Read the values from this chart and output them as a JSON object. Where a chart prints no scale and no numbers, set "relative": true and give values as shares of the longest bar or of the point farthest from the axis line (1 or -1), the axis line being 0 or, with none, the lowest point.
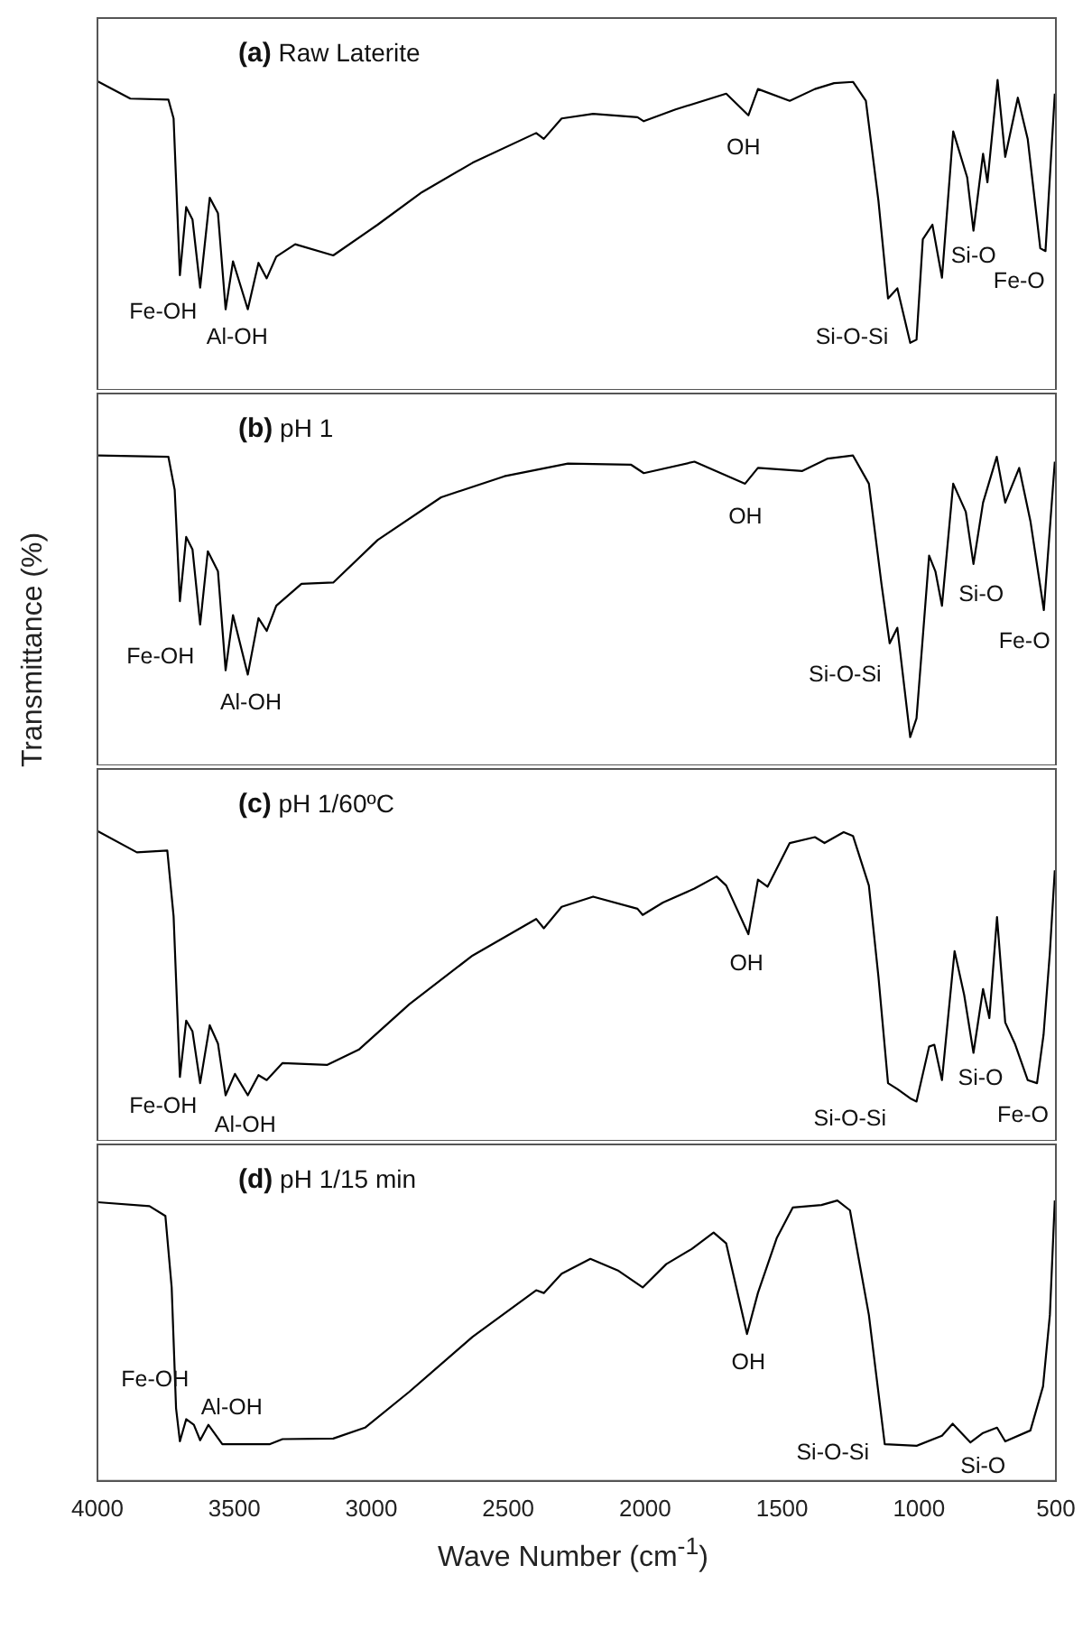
{
  "chart_data": [
    {
      "type": "line",
      "title": "(a) Raw Laterite",
      "relative": true,
      "xlim": [
        4000,
        500
      ],
      "tick_labels": false,
      "grid": false,
      "legend": false,
      "x": [
        4000,
        3880,
        3741,
        3722,
        3699,
        3676,
        3653,
        3625,
        3590,
        3560,
        3532,
        3505,
        3451,
        3412,
        3382,
        3347,
        3278,
        3139,
        2977,
        2815,
        2630,
        2398,
        2370,
        2305,
        2190,
        2028,
        2005,
        1889,
        1704,
        1623,
        1588,
        1472,
        1380,
        1310,
        1241,
        1194,
        1148,
        1113,
        1079,
        1032,
        1009,
        986,
        951,
        916,
        875,
        824,
        801,
        766,
        750,
        713,
        685,
        639,
        603,
        557,
        538,
        504
      ],
      "series": [
        {
          "color": "#000000",
          "values": [
            0.996,
            0.94,
            0.937,
            0.876,
            0.37,
            0.59,
            0.55,
            0.33,
            0.62,
            0.57,
            0.26,
            0.415,
            0.26,
            0.41,
            0.36,
            0.43,
            0.47,
            0.434,
            0.533,
            0.638,
            0.733,
            0.829,
            0.81,
            0.876,
            0.891,
            0.88,
            0.867,
            0.905,
            0.956,
            0.886,
            0.971,
            0.933,
            0.971,
            0.99,
            0.994,
            0.933,
            0.61,
            0.295,
            0.328,
            0.152,
            0.162,
            0.486,
            0.533,
            0.362,
            0.834,
            0.686,
            0.514,
            0.762,
            0.67,
            1,
            0.752,
            0.943,
            0.81,
            0.457,
            0.448,
            0.956
          ]
        }
      ],
      "annotations": [
        "Fe-OH",
        "Al-OH",
        "OH",
        "Si-O-Si",
        "Si-O",
        "Fe-O"
      ]
    },
    {
      "type": "line",
      "title": "(b) pH 1",
      "ylabel": "Transmittance (%)",
      "relative": true,
      "xlim": [
        4000,
        500
      ],
      "tick_labels": false,
      "grid": false,
      "legend": false,
      "x": [
        4000,
        3741,
        3718,
        3699,
        3676,
        3653,
        3625,
        3597,
        3560,
        3532,
        3505,
        3451,
        3412,
        3382,
        3347,
        3255,
        3139,
        2977,
        2745,
        2514,
        2282,
        2051,
        2005,
        1820,
        1635,
        1588,
        1426,
        1333,
        1241,
        1183,
        1137,
        1107,
        1079,
        1032,
        1009,
        963,
        940,
        916,
        875,
        829,
        801,
        766,
        716,
        685,
        634,
        593,
        544,
        504
      ],
      "series": [
        {
          "color": "#000000",
          "values": [
            1,
            0.996,
            0.889,
            0.53,
            0.737,
            0.697,
            0.455,
            0.691,
            0.626,
            0.307,
            0.485,
            0.293,
            0.475,
            0.434,
            0.515,
            0.586,
            0.59,
            0.727,
            0.865,
            0.933,
            0.974,
            0.97,
            0.943,
            0.98,
            0.909,
            0.96,
            0.95,
            0.99,
            1,
            0.909,
            0.586,
            0.394,
            0.444,
            0.091,
            0.152,
            0.677,
            0.626,
            0.515,
            0.909,
            0.818,
            0.65,
            0.848,
            0.996,
            0.848,
            0.96,
            0.788,
            0.501,
            0.98
          ]
        }
      ],
      "annotations": [
        "Fe-OH",
        "Al-OH",
        "OH",
        "Si-O-Si",
        "Si-O",
        "Fe-O"
      ]
    },
    {
      "type": "line",
      "title": "(c) pH 1/60ºC",
      "relative": true,
      "xlim": [
        4000,
        500
      ],
      "tick_labels": false,
      "grid": false,
      "legend": false,
      "x": [
        4000,
        3856,
        3745,
        3722,
        3699,
        3676,
        3653,
        3625,
        3590,
        3560,
        3532,
        3498,
        3451,
        3412,
        3382,
        3324,
        3162,
        3046,
        2861,
        2630,
        2398,
        2370,
        2305,
        2190,
        2028,
        2009,
        1935,
        1820,
        1739,
        1704,
        1623,
        1588,
        1553,
        1472,
        1380,
        1345,
        1275,
        1241,
        1183,
        1148,
        1113,
        1079,
        1032,
        1009,
        963,
        944,
        916,
        870,
        835,
        801,
        766,
        743,
        715,
        685,
        650,
        603,
        569,
        545,
        522,
        504
      ],
      "series": [
        {
          "color": "#000000",
          "values": [
            1,
            0.931,
            0.937,
            0.725,
            0.206,
            0.388,
            0.353,
            0.186,
            0.373,
            0.314,
            0.147,
            0.216,
            0.147,
            0.212,
            0.196,
            0.251,
            0.245,
            0.294,
            0.441,
            0.598,
            0.716,
            0.686,
            0.755,
            0.788,
            0.749,
            0.729,
            0.769,
            0.814,
            0.853,
            0.824,
            0.667,
            0.843,
            0.82,
            0.961,
            0.98,
            0.961,
            0.996,
            0.984,
            0.824,
            0.529,
            0.186,
            0.167,
            0.137,
            0.127,
            0.304,
            0.31,
            0.196,
            0.612,
            0.471,
            0.284,
            0.49,
            0.396,
            0.722,
            0.382,
            0.314,
            0.196,
            0.186,
            0.343,
            0.608,
            0.873
          ]
        }
      ],
      "annotations": [
        "Fe-OH",
        "Al-OH",
        "OH",
        "Si-O-Si",
        "Si-O",
        "Fe-O"
      ]
    },
    {
      "type": "line",
      "title": "(d) pH 1/15 min",
      "xlabel": "Wave Number (cm$^{-1}$)",
      "relative": true,
      "xlim": [
        4000,
        500
      ],
      "xticks": [
        4000,
        3500,
        3000,
        2500,
        2000,
        1500,
        1000,
        500
      ],
      "tick_labels": "x",
      "grid": false,
      "legend": false,
      "x": [
        4000,
        3810,
        3752,
        3729,
        3713,
        3699,
        3676,
        3648,
        3625,
        3595,
        3544,
        3370,
        3324,
        3139,
        3023,
        2861,
        2630,
        2398,
        2370,
        2305,
        2200,
        2097,
        2009,
        1923,
        1830,
        1750,
        1704,
        1658,
        1628,
        1588,
        1519,
        1461,
        1356,
        1298,
        1252,
        1183,
        1125,
        1009,
        916,
        877,
        812,
        766,
        715,
        685,
        593,
        547,
        522,
        504
      ],
      "series": [
        {
          "color": "#000000",
          "values": [
            0.994,
            0.98,
            0.945,
            0.69,
            0.259,
            0.141,
            0.22,
            0.2,
            0.145,
            0.2,
            0.131,
            0.131,
            0.149,
            0.151,
            0.19,
            0.318,
            0.514,
            0.68,
            0.67,
            0.739,
            0.792,
            0.749,
            0.69,
            0.773,
            0.827,
            0.886,
            0.847,
            0.651,
            0.524,
            0.671,
            0.867,
            0.975,
            0.984,
            1,
            0.965,
            0.592,
            0.131,
            0.125,
            0.161,
            0.204,
            0.137,
            0.171,
            0.19,
            0.141,
            0.18,
            0.337,
            0.592,
            1
          ]
        }
      ],
      "annotations": [
        "Fe-OH",
        "Al-OH",
        "OH",
        "Si-O-Si",
        "Si-O"
      ]
    }
  ]
}
